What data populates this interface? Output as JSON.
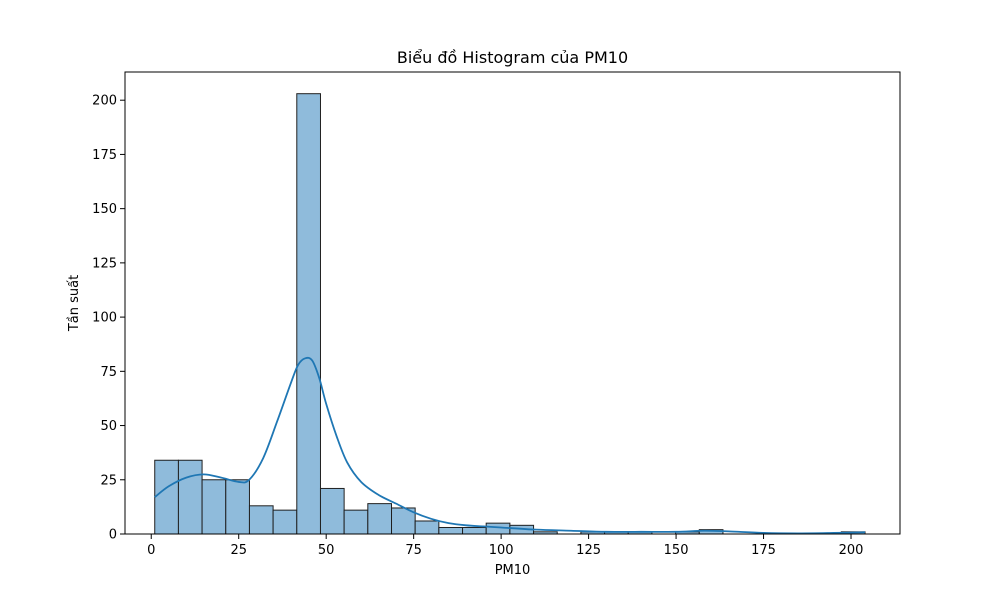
{
  "chart_data": {
    "type": "bar",
    "subtype": "histogram-with-kde",
    "title": "Biểu đồ Histogram của PM10",
    "xlabel": "PM10",
    "ylabel": "Tần suất",
    "xlim": [
      -7.5,
      214
    ],
    "ylim": [
      0,
      213
    ],
    "x_ticks": [
      0,
      25,
      50,
      75,
      100,
      125,
      150,
      175,
      200
    ],
    "y_ticks": [
      0,
      25,
      50,
      75,
      100,
      125,
      150,
      175,
      200
    ],
    "grid": false,
    "legend": "none",
    "bin_edges": [
      1,
      7.77,
      14.53,
      21.3,
      28.07,
      34.83,
      41.6,
      48.37,
      55.13,
      61.9,
      68.67,
      75.43,
      82.2,
      88.97,
      95.73,
      102.5,
      109.27,
      116.03,
      122.8,
      129.57,
      136.33,
      143.1,
      149.87,
      156.63,
      163.4,
      170.17,
      176.93,
      183.7,
      190.47,
      197.23,
      204
    ],
    "counts": [
      34,
      34,
      25,
      25,
      13,
      11,
      203,
      21,
      11,
      14,
      12,
      6,
      3,
      3,
      5,
      4,
      1,
      0,
      1,
      1,
      1,
      0,
      1,
      2,
      0,
      0,
      0,
      0,
      0,
      1
    ],
    "kde": {
      "x": [
        1,
        5,
        10,
        15,
        20,
        25,
        28,
        32,
        36,
        40,
        42,
        44,
        46,
        48,
        50,
        53,
        56,
        60,
        65,
        70,
        75,
        80,
        85,
        90,
        95,
        100,
        110,
        120,
        130,
        140,
        150,
        158,
        165,
        175,
        185,
        195,
        204
      ],
      "y": [
        17,
        22,
        26,
        27.5,
        26,
        24,
        25,
        35,
        52,
        70,
        78,
        81,
        80,
        72,
        60,
        45,
        33,
        24,
        18,
        14,
        10,
        7,
        5,
        4,
        3.5,
        3,
        2,
        1.5,
        1,
        1,
        1,
        1.5,
        1.2,
        0.5,
        0.3,
        0.5,
        0.8
      ]
    },
    "colors": {
      "bar_fill": "#8fbbdb",
      "bar_edge": "#1f1f1f",
      "kde_line": "#1f77b4"
    }
  }
}
